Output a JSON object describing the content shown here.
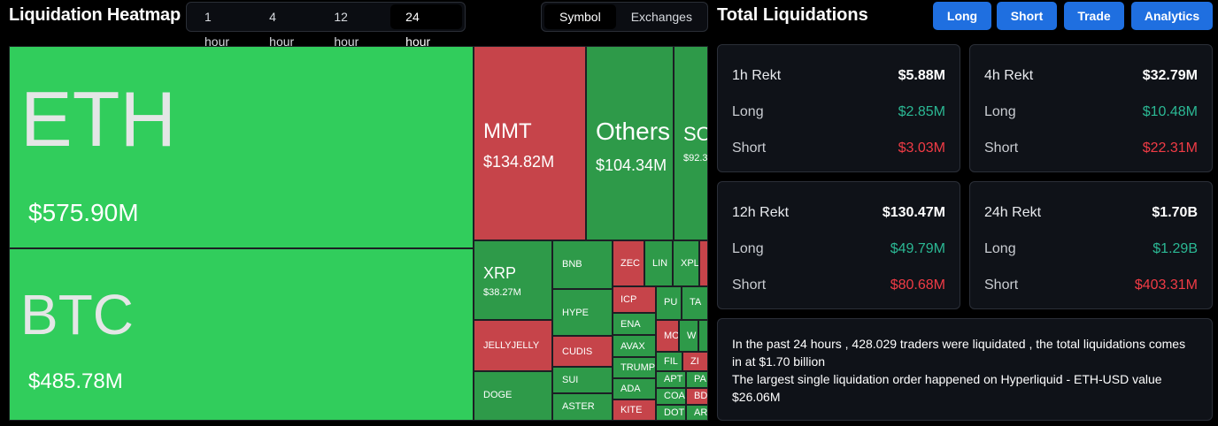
{
  "header": {
    "title": "Liquidation Heatmap"
  },
  "time_tabs": [
    "1 hour",
    "4 hour",
    "12 hour",
    "24 hour"
  ],
  "time_active": "24 hour",
  "view_tabs": [
    "Symbol",
    "Exchanges"
  ],
  "view_active": "Symbol",
  "heatmap": {
    "eth": {
      "symbol": "ETH",
      "value": "$575.90M"
    },
    "btc": {
      "symbol": "BTC",
      "value": "$485.78M"
    },
    "mmt": {
      "symbol": "MMT",
      "value": "$134.82M"
    },
    "others": {
      "symbol": "Others",
      "value": "$104.34M"
    },
    "sol": {
      "symbol": "SO",
      "value": "$92.3"
    },
    "xrp": {
      "symbol": "XRP",
      "value": "$38.27M"
    },
    "jellyjelly": {
      "symbol": "JELLYJELLY"
    },
    "doge": {
      "symbol": "DOGE"
    },
    "bnb": {
      "symbol": "BNB"
    },
    "hype": {
      "symbol": "HYPE"
    },
    "cudis": {
      "symbol": "CUDIS"
    },
    "sui": {
      "symbol": "SUI"
    },
    "aster": {
      "symbol": "ASTER"
    },
    "zec": {
      "symbol": "ZEC"
    },
    "icp": {
      "symbol": "ICP"
    },
    "ena": {
      "symbol": "ENA"
    },
    "avax": {
      "symbol": "AVAX"
    },
    "trump": {
      "symbol": "TRUMP"
    },
    "ada": {
      "symbol": "ADA"
    },
    "kite": {
      "symbol": "KITE"
    },
    "lin": {
      "symbol": "LIN"
    },
    "xpl": {
      "symbol": "XPL"
    },
    "pu": {
      "symbol": "PU"
    },
    "ta": {
      "symbol": "TA"
    },
    "mo": {
      "symbol": "MO"
    },
    "w": {
      "symbol": "W"
    },
    "fil": {
      "symbol": "FIL"
    },
    "zr": {
      "symbol": "ZI"
    },
    "apt": {
      "symbol": "APT"
    },
    "pa": {
      "symbol": "PA"
    },
    "coa": {
      "symbol": "COA"
    },
    "bd": {
      "symbol": "BD"
    },
    "dot": {
      "symbol": "DOT"
    },
    "ar": {
      "symbol": "AR"
    }
  },
  "panel": {
    "title": "Total Liquidations",
    "buttons": [
      "Long",
      "Short",
      "Trade",
      "Analytics"
    ],
    "long_label": "Long",
    "short_label": "Short",
    "cards": [
      {
        "title": "1h Rekt",
        "total": "$5.88M",
        "long": "$2.85M",
        "short": "$3.03M"
      },
      {
        "title": "4h Rekt",
        "total": "$32.79M",
        "long": "$10.48M",
        "short": "$22.31M"
      },
      {
        "title": "12h Rekt",
        "total": "$130.47M",
        "long": "$49.79M",
        "short": "$80.68M"
      },
      {
        "title": "24h Rekt",
        "total": "$1.70B",
        "long": "$1.29B",
        "short": "$403.31M"
      }
    ],
    "summary_line1": "In the past 24 hours , 428.029 traders were liquidated , the total liquidations comes in at $1.70 billion",
    "summary_line2": "The largest single liquidation order happened on Hyperliquid - ETH-USD value $26.06M"
  },
  "colors": {
    "green_bright": "#31cd5c",
    "green_dark": "#2e9a49",
    "red": "#c6444a",
    "accent_blue": "#1f6fe0",
    "long_text": "#2bb894",
    "short_text": "#f03b45"
  }
}
